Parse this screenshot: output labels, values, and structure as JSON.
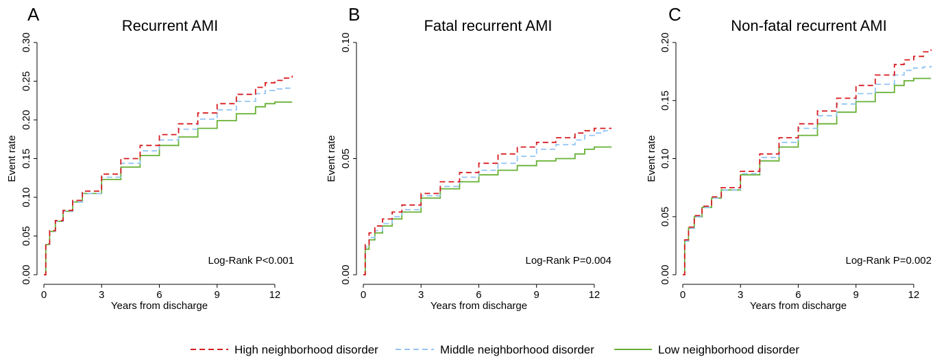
{
  "chart_data": [
    {
      "type": "line",
      "panel_letter": "A",
      "title": "Recurrent AMI",
      "xlabel": "Years from discharge",
      "ylabel": "Event rate",
      "xlim": [
        0,
        13
      ],
      "ylim": [
        0,
        0.3
      ],
      "xticks": [
        0,
        3,
        6,
        9,
        12
      ],
      "xtick_labels": [
        "0",
        "3",
        "6",
        "9",
        "12"
      ],
      "yticks": [
        0,
        0.05,
        0.1,
        0.15,
        0.2,
        0.25,
        0.3
      ],
      "ytick_labels": [
        "0.00",
        "0.05",
        "0.10",
        "0.15",
        "0.20",
        "0.25",
        "0.30"
      ],
      "annotation": "Log-Rank P<0.001",
      "x": [
        0,
        0.1,
        0.3,
        0.6,
        1,
        1.5,
        2,
        3,
        4,
        5,
        6,
        7,
        8,
        9,
        10,
        11,
        11.5,
        12,
        12.5,
        12.9
      ],
      "series": [
        {
          "name": "High neighborhood disorder",
          "values": [
            0,
            0.04,
            0.057,
            0.07,
            0.083,
            0.096,
            0.108,
            0.13,
            0.15,
            0.167,
            0.181,
            0.195,
            0.209,
            0.221,
            0.233,
            0.242,
            0.248,
            0.251,
            0.254,
            0.257
          ]
        },
        {
          "name": "Middle neighborhood disorder",
          "values": [
            0,
            0.039,
            0.056,
            0.069,
            0.082,
            0.094,
            0.105,
            0.126,
            0.144,
            0.16,
            0.174,
            0.188,
            0.201,
            0.213,
            0.224,
            0.234,
            0.238,
            0.24,
            0.241,
            0.241
          ]
        },
        {
          "name": "Low neighborhood disorder",
          "values": [
            0,
            0.039,
            0.056,
            0.069,
            0.082,
            0.094,
            0.105,
            0.123,
            0.139,
            0.154,
            0.167,
            0.178,
            0.189,
            0.199,
            0.208,
            0.217,
            0.221,
            0.223,
            0.223,
            0.223
          ]
        }
      ]
    },
    {
      "type": "line",
      "panel_letter": "B",
      "title": "Fatal recurrent AMI",
      "xlabel": "Years from discharge",
      "ylabel": "Event rate",
      "xlim": [
        0,
        13
      ],
      "ylim": [
        0,
        0.1
      ],
      "xticks": [
        0,
        3,
        6,
        9,
        12
      ],
      "xtick_labels": [
        "0",
        "3",
        "6",
        "9",
        "12"
      ],
      "yticks": [
        0,
        0.05,
        0.1
      ],
      "ytick_labels": [
        "0.00",
        "0.05",
        "0.10"
      ],
      "annotation": "Log-Rank P=0.004",
      "x": [
        0,
        0.1,
        0.3,
        0.6,
        1,
        1.5,
        2,
        3,
        4,
        5,
        6,
        7,
        8,
        9,
        10,
        11,
        11.5,
        12,
        12.5,
        12.9
      ],
      "series": [
        {
          "name": "High neighborhood disorder",
          "values": [
            0,
            0.013,
            0.018,
            0.021,
            0.024,
            0.027,
            0.03,
            0.035,
            0.04,
            0.044,
            0.048,
            0.052,
            0.055,
            0.057,
            0.059,
            0.061,
            0.062,
            0.063,
            0.063,
            0.063
          ]
        },
        {
          "name": "Middle neighborhood disorder",
          "values": [
            0,
            0.012,
            0.016,
            0.019,
            0.022,
            0.025,
            0.028,
            0.034,
            0.038,
            0.042,
            0.045,
            0.048,
            0.051,
            0.054,
            0.056,
            0.058,
            0.06,
            0.061,
            0.062,
            0.062
          ]
        },
        {
          "name": "Low neighborhood disorder",
          "values": [
            0,
            0.011,
            0.015,
            0.018,
            0.021,
            0.024,
            0.027,
            0.033,
            0.037,
            0.04,
            0.043,
            0.045,
            0.047,
            0.049,
            0.05,
            0.052,
            0.054,
            0.055,
            0.055,
            0.055
          ]
        }
      ]
    },
    {
      "type": "line",
      "panel_letter": "C",
      "title": "Non-fatal recurrent AMI",
      "xlabel": "Years from discharge",
      "ylabel": "Event rate",
      "xlim": [
        0,
        13
      ],
      "ylim": [
        0,
        0.2
      ],
      "xticks": [
        0,
        3,
        6,
        9,
        12
      ],
      "xtick_labels": [
        "0",
        "3",
        "6",
        "9",
        "12"
      ],
      "yticks": [
        0,
        0.05,
        0.1,
        0.15,
        0.2
      ],
      "ytick_labels": [
        "0.00",
        "0.05",
        "0.10",
        "0.15",
        "0.20"
      ],
      "annotation": "Log-Rank P=0.002",
      "x": [
        0,
        0.1,
        0.3,
        0.6,
        1,
        1.5,
        2,
        3,
        4,
        5,
        6,
        7,
        8,
        9,
        10,
        11,
        11.5,
        12,
        12.5,
        12.9
      ],
      "series": [
        {
          "name": "High neighborhood disorder",
          "values": [
            0,
            0.03,
            0.041,
            0.051,
            0.059,
            0.067,
            0.075,
            0.089,
            0.104,
            0.118,
            0.13,
            0.141,
            0.152,
            0.163,
            0.172,
            0.181,
            0.185,
            0.188,
            0.192,
            0.194
          ]
        },
        {
          "name": "Middle neighborhood disorder",
          "values": [
            0,
            0.029,
            0.04,
            0.05,
            0.058,
            0.066,
            0.073,
            0.087,
            0.101,
            0.114,
            0.126,
            0.137,
            0.147,
            0.156,
            0.164,
            0.172,
            0.176,
            0.178,
            0.179,
            0.18
          ]
        },
        {
          "name": "Low neighborhood disorder",
          "values": [
            0,
            0.029,
            0.04,
            0.05,
            0.058,
            0.066,
            0.073,
            0.086,
            0.098,
            0.11,
            0.12,
            0.13,
            0.14,
            0.149,
            0.157,
            0.163,
            0.167,
            0.169,
            0.169,
            0.169
          ]
        }
      ]
    }
  ],
  "legend": {
    "position": "bottom-center",
    "items": [
      {
        "label": "High neighborhood disorder",
        "color": "#d7191c",
        "dash": "dashed"
      },
      {
        "label": "Middle neighborhood disorder",
        "color": "#92c5f5",
        "dash": "dashed"
      },
      {
        "label": "Low neighborhood disorder",
        "color": "#66b032",
        "dash": "solid"
      }
    ]
  }
}
